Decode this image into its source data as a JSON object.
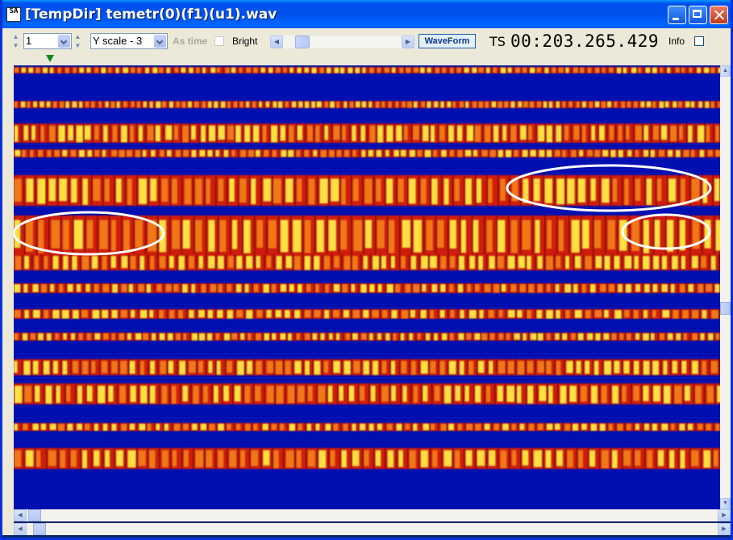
{
  "window": {
    "title": "[TempDir] temetr(0)(f1)(u1).wav",
    "icon_text": "SA"
  },
  "toolbar": {
    "channel_value": "1",
    "yscale_value": "Y scale - 3",
    "as_time_label": "As time",
    "bright_label": "Bright",
    "waveform_label": "WaveForm",
    "ts_label": "TS",
    "ts_value": "00:203.265.429",
    "info_label": "Info"
  },
  "colors": {
    "background_blue": "#0010B0",
    "band_red": "#D01C0C",
    "band_orange": "#F07818",
    "band_yellow": "#FFE040",
    "highlight_ellipse": "#FFFFFF"
  },
  "icons": {
    "minimize": "minimize-icon",
    "maximize": "maximize-icon",
    "close": "close-icon",
    "spin": "spin-updown-icon",
    "dropdown": "chevron-down-icon",
    "scroll_left": "arrow-left-icon",
    "scroll_right": "arrow-right-icon",
    "scroll_up": "arrow-up-icon",
    "scroll_down": "arrow-down-icon",
    "position_marker": "triangle-down-marker-icon"
  }
}
